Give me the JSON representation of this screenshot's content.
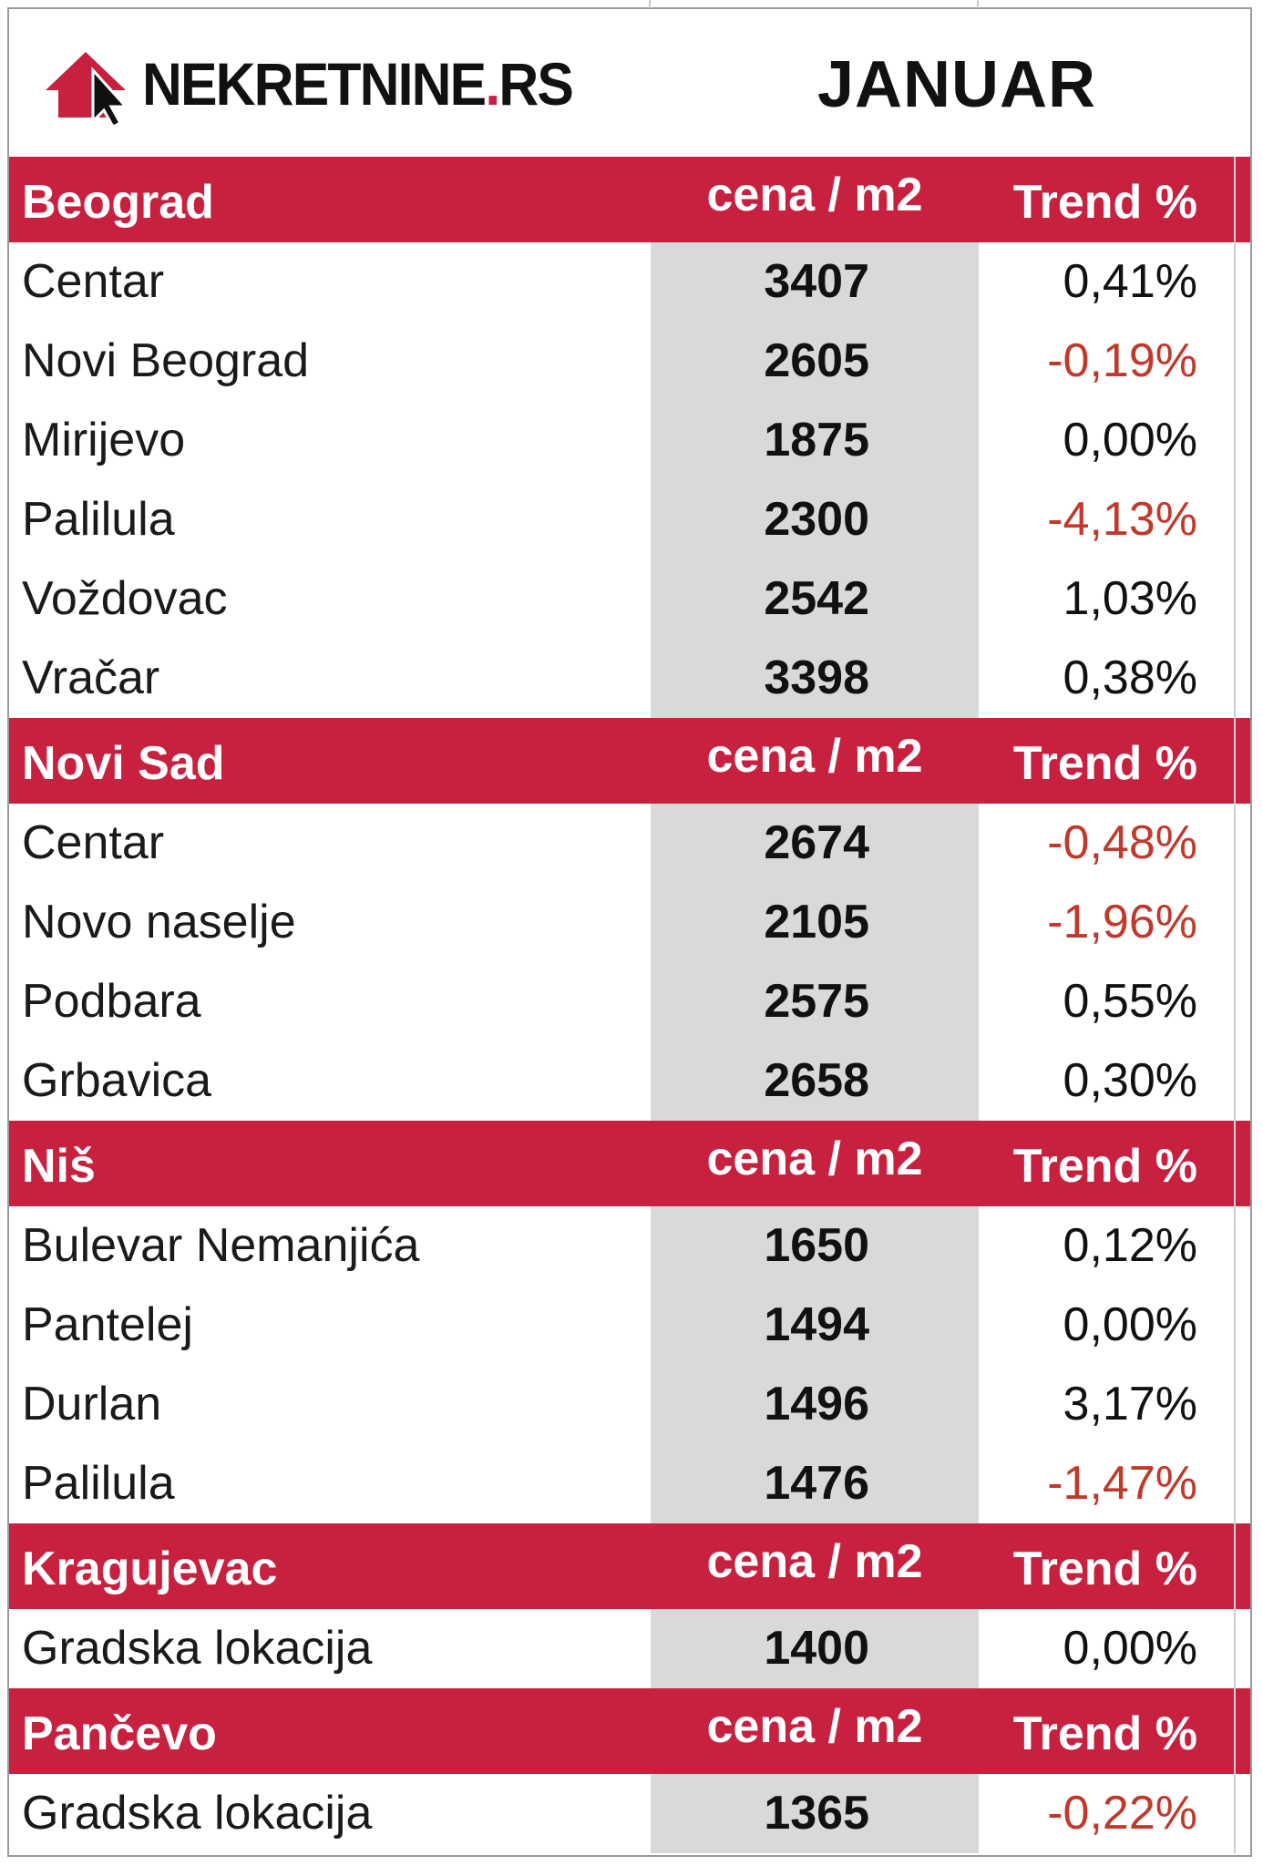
{
  "header": {
    "logo_text": "NEKRETNINE",
    "logo_dot": ".",
    "logo_tld": "RS",
    "month": "JANUAR"
  },
  "columns": {
    "price": "cena / m2",
    "trend": "Trend %"
  },
  "colors": {
    "accent": "#c8203f",
    "negative": "#c0392b",
    "price_bg": "#d9d9d9"
  },
  "sections": [
    {
      "city": "Beograd",
      "rows": [
        {
          "name": "Centar",
          "price": "3407",
          "trend": "0,41%",
          "negative": false
        },
        {
          "name": "Novi Beograd",
          "price": "2605",
          "trend": "-0,19%",
          "negative": true
        },
        {
          "name": "Mirijevo",
          "price": "1875",
          "trend": "0,00%",
          "negative": false
        },
        {
          "name": "Palilula",
          "price": "2300",
          "trend": "-4,13%",
          "negative": true
        },
        {
          "name": "Voždovac",
          "price": "2542",
          "trend": "1,03%",
          "negative": false
        },
        {
          "name": "Vračar",
          "price": "3398",
          "trend": "0,38%",
          "negative": false
        }
      ]
    },
    {
      "city": "Novi Sad",
      "rows": [
        {
          "name": "Centar",
          "price": "2674",
          "trend": "-0,48%",
          "negative": true
        },
        {
          "name": "Novo naselje",
          "price": "2105",
          "trend": "-1,96%",
          "negative": true
        },
        {
          "name": "Podbara",
          "price": "2575",
          "trend": "0,55%",
          "negative": false
        },
        {
          "name": "Grbavica",
          "price": "2658",
          "trend": "0,30%",
          "negative": false
        }
      ]
    },
    {
      "city": "Niš",
      "rows": [
        {
          "name": "Bulevar Nemanjića",
          "price": "1650",
          "trend": "0,12%",
          "negative": false
        },
        {
          "name": "Pantelej",
          "price": "1494",
          "trend": "0,00%",
          "negative": false
        },
        {
          "name": "Durlan",
          "price": "1496",
          "trend": "3,17%",
          "negative": false
        },
        {
          "name": "Palilula",
          "price": "1476",
          "trend": "-1,47%",
          "negative": true
        }
      ]
    },
    {
      "city": "Kragujevac",
      "rows": [
        {
          "name": "Gradska lokacija",
          "price": "1400",
          "trend": "0,00%",
          "negative": false
        }
      ]
    },
    {
      "city": "Pančevo",
      "rows": [
        {
          "name": "Gradska lokacija",
          "price": "1365",
          "trend": "-0,22%",
          "negative": true
        }
      ]
    }
  ]
}
